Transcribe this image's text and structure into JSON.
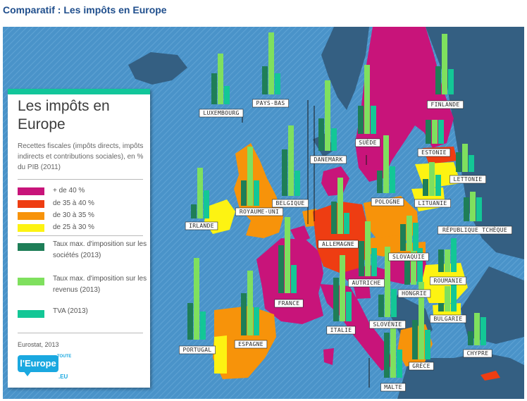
{
  "title": "Comparatif : Les impôts en Europe",
  "legend": {
    "title": "Les impôts en Europe",
    "subtitle": "Recettes fiscales (impôts directs, impôts indirects et contributions sociales), en % du PIB (2011)",
    "classes": [
      {
        "label": "+ de 40 %",
        "color": "#c8147a"
      },
      {
        "label": "de 35 à 40 %",
        "color": "#ee3d12"
      },
      {
        "label": "de 30 à 35 %",
        "color": "#f7930a"
      },
      {
        "label": "de 25 à 30 %",
        "color": "#fdf312"
      }
    ],
    "indicators": [
      {
        "label": "Taux max. d'imposition sur les sociétés (2013)",
        "color": "#1e7e57"
      },
      {
        "label": "Taux max. d'imposition sur les revenus (2013)",
        "color": "#7fe05e"
      },
      {
        "label": "TVA (2013)",
        "color": "#13c796"
      }
    ],
    "source": "Eurostat, 2013"
  },
  "logo": {
    "main": "l'Europe",
    "top": "TOUTE",
    "bottom": ".EU"
  },
  "countries": [
    "LUXEMBOURG",
    "PAYS-BAS",
    "FINLANDE",
    "SUÈDE",
    "DANEMARK",
    "ESTONIE",
    "LETTONIE",
    "IRLANDE",
    "ROYAUME-UNI",
    "BELGIQUE",
    "POLOGNE",
    "LITUANIE",
    "ALLEMAGNE",
    "RÉPUBLIQUE TCHÈQUE",
    "SLOVAQUIE",
    "AUTRICHE",
    "HONGRIE",
    "ROUMANIE",
    "FRANCE",
    "SLOVÉNIE",
    "BULGARIE",
    "ITALIE",
    "PORTUGAL",
    "ESPAGNE",
    "GRÈCE",
    "CHYPRE",
    "MALTE"
  ]
}
